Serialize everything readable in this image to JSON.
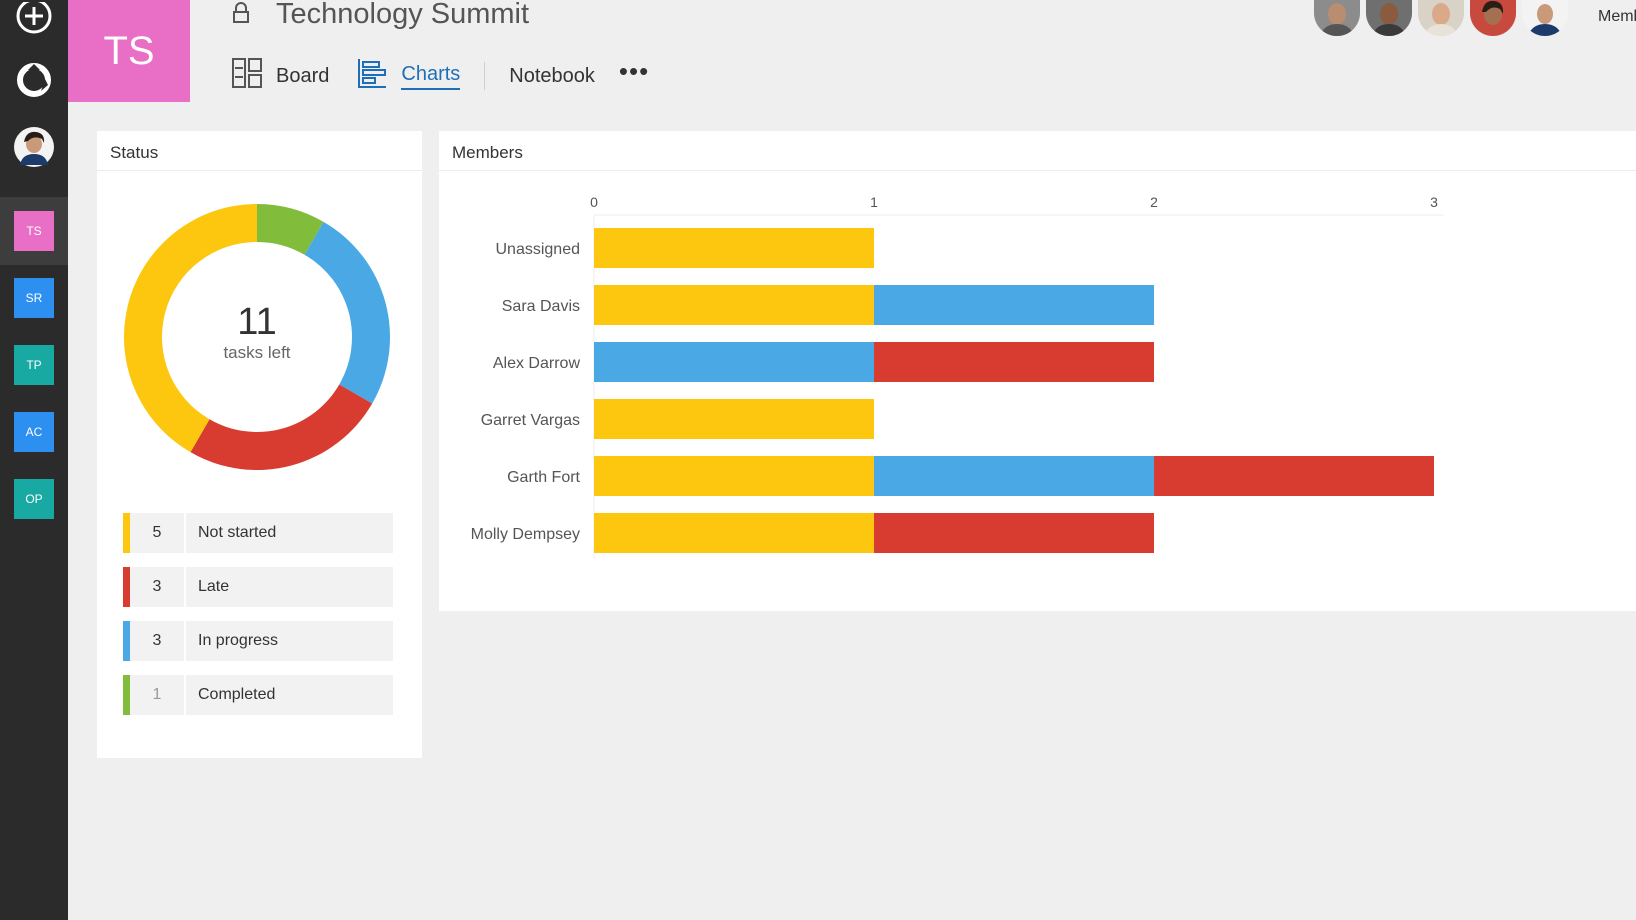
{
  "rail": {
    "plans": [
      {
        "initials": "TS",
        "color": "#e86fc5"
      },
      {
        "initials": "SR",
        "color": "#2d8ff0"
      },
      {
        "initials": "TP",
        "color": "#17a9a2"
      },
      {
        "initials": "AC",
        "color": "#2d8ff0"
      },
      {
        "initials": "OP",
        "color": "#17a9a2"
      }
    ]
  },
  "header": {
    "initials": "TS",
    "title": "Technology Summit",
    "tabs": [
      {
        "label": "Board"
      },
      {
        "label": "Charts"
      },
      {
        "label": "Notebook"
      }
    ],
    "more": "•••",
    "members_link": "Members"
  },
  "status": {
    "title": "Status",
    "total": "11",
    "subtitle": "tasks left",
    "items": [
      {
        "count": "5",
        "label": "Not started",
        "color": "#fcc70e"
      },
      {
        "count": "3",
        "label": "Late",
        "color": "#d83b2f"
      },
      {
        "count": "3",
        "label": "In progress",
        "color": "#4aa9e4"
      },
      {
        "count": "1",
        "label": "Completed",
        "color": "#82bc3b"
      }
    ]
  },
  "members": {
    "title": "Members"
  },
  "chart_data": [
    {
      "type": "pie",
      "categories": [
        "Not started",
        "Late",
        "In progress",
        "Completed"
      ],
      "values": [
        5,
        3,
        3,
        1
      ],
      "colors": [
        "#fcc70e",
        "#d83b2f",
        "#4aa9e4",
        "#82bc3b"
      ],
      "center_text": "11",
      "center_subtext": "tasks left"
    },
    {
      "type": "bar",
      "orientation": "horizontal",
      "stacked": true,
      "categories": [
        "Unassigned",
        "Sara Davis",
        "Alex Darrow",
        "Garret Vargas",
        "Garth Fort",
        "Molly Dempsey"
      ],
      "series": [
        {
          "color": "#fcc70e",
          "values": [
            1,
            1,
            0,
            1,
            1,
            1
          ]
        },
        {
          "color": "#4aa9e4",
          "values": [
            0,
            1,
            1,
            0,
            1,
            0
          ]
        },
        {
          "color": "#d83b2f",
          "values": [
            0,
            0,
            1,
            0,
            1,
            1
          ]
        }
      ],
      "xlim": [
        0,
        3
      ],
      "xticks": [
        "0",
        "1",
        "2",
        "3"
      ],
      "xaxis_position": "top",
      "grid": false
    }
  ]
}
